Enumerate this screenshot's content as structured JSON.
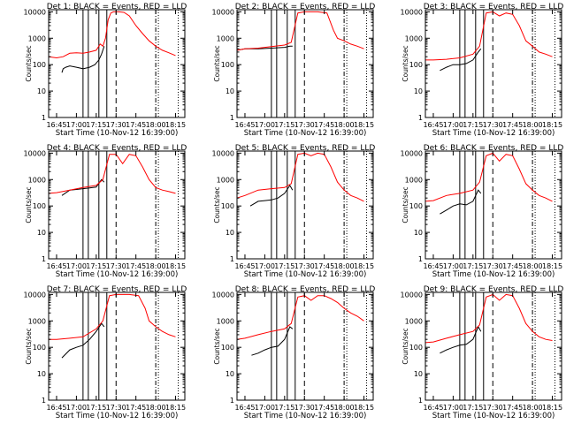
{
  "figure": {
    "x_axis_title": "Start Time (10-Nov-12 16:39:00)",
    "y_axis_title": "Counts/sec",
    "x_tick_labels": [
      "16:45",
      "17:00",
      "17:15",
      "17:30",
      "17:45",
      "18:00",
      "18:15"
    ],
    "y_tick_labels": [
      "1",
      "10",
      "100",
      "1000",
      "10000"
    ],
    "colors": {
      "events": "#000000",
      "lld": "#ff0000",
      "axes": "#000000"
    }
  },
  "chart_data": [
    {
      "type": "line",
      "title": "Det 1: BLACK = Events, RED = LLD",
      "xlabel": "Start Time (10-Nov-12 16:39:00)",
      "ylabel": "Counts/sec",
      "yscale": "log",
      "ylim": [
        1,
        12000
      ],
      "series": [
        {
          "name": "Events",
          "color": "#000000",
          "x": [
            "16:49",
            "16:50",
            "16:52",
            "16:55",
            "17:00",
            "17:05",
            "17:10",
            "17:14",
            "17:17",
            "17:19",
            "17:21"
          ],
          "values": [
            50,
            70,
            80,
            90,
            80,
            70,
            80,
            100,
            150,
            250,
            500
          ]
        },
        {
          "name": "LLD",
          "color": "#ff0000",
          "x": [
            "16:39",
            "16:45",
            "16:50",
            "16:55",
            "17:00",
            "17:05",
            "17:10",
            "17:15",
            "17:18",
            "17:20",
            "17:22",
            "17:24",
            "17:26",
            "17:28",
            "17:32",
            "17:36",
            "17:40",
            "17:45",
            "17:50",
            "17:55",
            "18:00",
            "18:05",
            "18:10",
            "18:15"
          ],
          "values": [
            200,
            180,
            200,
            270,
            280,
            270,
            300,
            350,
            600,
            500,
            1000,
            5000,
            9000,
            10000,
            10000,
            9500,
            7000,
            3000,
            1500,
            800,
            500,
            350,
            280,
            220
          ]
        }
      ]
    },
    {
      "type": "line",
      "title": "Det 2: BLACK = Events, RED = LLD",
      "xlabel": "Start Time (10-Nov-12 16:39:00)",
      "ylabel": "Counts/sec",
      "yscale": "log",
      "ylim": [
        1,
        12000
      ],
      "series": [
        {
          "name": "Events",
          "color": "#000000",
          "x": [
            "16:39",
            "16:45",
            "16:55",
            "17:05",
            "17:15",
            "17:19",
            "17:21"
          ],
          "values": [
            350,
            400,
            400,
            420,
            450,
            500,
            500
          ]
        },
        {
          "name": "LLD",
          "color": "#ff0000",
          "x": [
            "16:39",
            "16:45",
            "16:55",
            "17:05",
            "17:15",
            "17:20",
            "17:25",
            "17:30",
            "17:40",
            "17:47",
            "17:52",
            "17:55",
            "18:00",
            "18:05",
            "18:10",
            "18:15"
          ],
          "values": [
            350,
            400,
            420,
            480,
            550,
            700,
            9000,
            10000,
            10000,
            9000,
            2000,
            1000,
            800,
            600,
            500,
            400
          ]
        }
      ]
    },
    {
      "type": "line",
      "title": "Det 3: BLACK = Events, RED = LLD",
      "xlabel": "Start Time (10-Nov-12 16:39:00)",
      "ylabel": "Counts/sec",
      "yscale": "log",
      "ylim": [
        1,
        12000
      ],
      "series": [
        {
          "name": "Events",
          "color": "#000000",
          "x": [
            "16:50",
            "16:55",
            "17:00",
            "17:05",
            "17:10",
            "17:15",
            "17:19",
            "17:21"
          ],
          "values": [
            60,
            80,
            100,
            100,
            110,
            150,
            300,
            400
          ]
        },
        {
          "name": "LLD",
          "color": "#ff0000",
          "x": [
            "16:39",
            "16:45",
            "16:55",
            "17:05",
            "17:15",
            "17:20",
            "17:25",
            "17:30",
            "17:35",
            "17:40",
            "17:45",
            "17:50",
            "17:55",
            "18:00",
            "18:05",
            "18:10",
            "18:15"
          ],
          "values": [
            150,
            150,
            160,
            180,
            250,
            500,
            9000,
            10000,
            7000,
            9000,
            8000,
            3000,
            800,
            500,
            300,
            250,
            200
          ]
        }
      ]
    },
    {
      "type": "line",
      "title": "Det 4: BLACK = Events, RED = LLD",
      "xlabel": "Start Time (10-Nov-12 16:39:00)",
      "ylabel": "Counts/sec",
      "yscale": "log",
      "ylim": [
        1,
        12000
      ],
      "series": [
        {
          "name": "Events",
          "color": "#000000",
          "x": [
            "16:49",
            "16:55",
            "17:00",
            "17:05",
            "17:10",
            "17:15",
            "17:19",
            "17:21"
          ],
          "values": [
            250,
            400,
            420,
            450,
            480,
            520,
            1000,
            800
          ]
        },
        {
          "name": "LLD",
          "color": "#ff0000",
          "x": [
            "16:39",
            "16:45",
            "16:55",
            "17:05",
            "17:15",
            "17:20",
            "17:25",
            "17:30",
            "17:35",
            "17:40",
            "17:45",
            "17:50",
            "17:55",
            "18:00",
            "18:05",
            "18:10",
            "18:15"
          ],
          "values": [
            300,
            320,
            400,
            500,
            600,
            1000,
            9000,
            9000,
            4000,
            9000,
            8000,
            3000,
            1000,
            500,
            400,
            350,
            300
          ]
        }
      ]
    },
    {
      "type": "line",
      "title": "Det 5: BLACK = Events, RED = LLD",
      "xlabel": "Start Time (10-Nov-12 16:39:00)",
      "ylabel": "Counts/sec",
      "yscale": "log",
      "ylim": [
        1,
        12000
      ],
      "series": [
        {
          "name": "Events",
          "color": "#000000",
          "x": [
            "16:49",
            "16:55",
            "17:00",
            "17:05",
            "17:10",
            "17:15",
            "17:19",
            "17:21"
          ],
          "values": [
            100,
            150,
            160,
            170,
            200,
            300,
            600,
            400
          ]
        },
        {
          "name": "LLD",
          "color": "#ff0000",
          "x": [
            "16:39",
            "16:45",
            "16:55",
            "17:05",
            "17:15",
            "17:20",
            "17:25",
            "17:30",
            "17:35",
            "17:40",
            "17:45",
            "17:50",
            "17:55",
            "18:00",
            "18:05",
            "18:10",
            "18:15"
          ],
          "values": [
            200,
            250,
            400,
            450,
            500,
            700,
            9000,
            10000,
            8000,
            10000,
            9000,
            3000,
            800,
            400,
            250,
            200,
            150
          ]
        }
      ]
    },
    {
      "type": "line",
      "title": "Det 6: BLACK = Events, RED = LLD",
      "xlabel": "Start Time (10-Nov-12 16:39:00)",
      "ylabel": "Counts/sec",
      "yscale": "log",
      "ylim": [
        1,
        12000
      ],
      "series": [
        {
          "name": "Events",
          "color": "#000000",
          "x": [
            "16:50",
            "16:55",
            "17:00",
            "17:05",
            "17:10",
            "17:15",
            "17:19",
            "17:21"
          ],
          "values": [
            50,
            70,
            100,
            120,
            110,
            150,
            400,
            300
          ]
        },
        {
          "name": "LLD",
          "color": "#ff0000",
          "x": [
            "16:39",
            "16:45",
            "16:55",
            "17:05",
            "17:15",
            "17:20",
            "17:25",
            "17:30",
            "17:35",
            "17:40",
            "17:45",
            "17:50",
            "17:55",
            "18:00",
            "18:05",
            "18:10",
            "18:15"
          ],
          "values": [
            150,
            160,
            250,
            300,
            400,
            800,
            8000,
            10000,
            5000,
            9000,
            8000,
            2500,
            700,
            400,
            250,
            200,
            150
          ]
        }
      ]
    },
    {
      "type": "line",
      "title": "Det 7: BLACK = Events, RED = LLD",
      "xlabel": "Start Time (10-Nov-12 16:39:00)",
      "ylabel": "Counts/sec",
      "yscale": "log",
      "ylim": [
        1,
        12000
      ],
      "series": [
        {
          "name": "Events",
          "color": "#000000",
          "x": [
            "16:49",
            "16:55",
            "17:00",
            "17:05",
            "17:10",
            "17:15",
            "17:19",
            "17:21"
          ],
          "values": [
            40,
            80,
            100,
            120,
            200,
            400,
            800,
            600
          ]
        },
        {
          "name": "LLD",
          "color": "#ff0000",
          "x": [
            "16:39",
            "16:45",
            "16:55",
            "17:05",
            "17:15",
            "17:20",
            "17:25",
            "17:30",
            "17:40",
            "17:47",
            "17:52",
            "17:55",
            "18:00",
            "18:05",
            "18:10",
            "18:15"
          ],
          "values": [
            200,
            200,
            220,
            250,
            500,
            1000,
            9000,
            10000,
            10000,
            9000,
            3000,
            1000,
            600,
            400,
            300,
            250
          ]
        }
      ]
    },
    {
      "type": "line",
      "title": "Det 8: BLACK = Events, RED = LLD",
      "xlabel": "Start Time (10-Nov-12 16:39:00)",
      "ylabel": "Counts/sec",
      "yscale": "log",
      "ylim": [
        1,
        12000
      ],
      "series": [
        {
          "name": "Events",
          "color": "#000000",
          "x": [
            "16:50",
            "16:55",
            "17:00",
            "17:05",
            "17:10",
            "17:15",
            "17:19",
            "17:21"
          ],
          "values": [
            50,
            60,
            80,
            100,
            110,
            200,
            600,
            500
          ]
        },
        {
          "name": "LLD",
          "color": "#ff0000",
          "x": [
            "16:39",
            "16:45",
            "16:55",
            "17:05",
            "17:15",
            "17:20",
            "17:25",
            "17:30",
            "17:35",
            "17:40",
            "17:45",
            "17:50",
            "17:55",
            "18:00",
            "18:05",
            "18:10",
            "18:15"
          ],
          "values": [
            200,
            220,
            300,
            400,
            500,
            800,
            8000,
            9000,
            6000,
            9000,
            9000,
            7000,
            5000,
            3000,
            2000,
            1500,
            1000
          ]
        }
      ]
    },
    {
      "type": "line",
      "title": "Det 9: BLACK = Events, RED = LLD",
      "xlabel": "Start Time (10-Nov-12 16:39:00)",
      "ylabel": "Counts/sec",
      "yscale": "log",
      "ylim": [
        1,
        12000
      ],
      "series": [
        {
          "name": "Events",
          "color": "#000000",
          "x": [
            "16:50",
            "16:55",
            "17:00",
            "17:05",
            "17:10",
            "17:15",
            "17:19",
            "17:21"
          ],
          "values": [
            60,
            80,
            100,
            120,
            130,
            200,
            600,
            400
          ]
        },
        {
          "name": "LLD",
          "color": "#ff0000",
          "x": [
            "16:39",
            "16:45",
            "16:55",
            "17:05",
            "17:15",
            "17:20",
            "17:25",
            "17:30",
            "17:35",
            "17:40",
            "17:45",
            "17:50",
            "17:55",
            "18:00",
            "18:05",
            "18:10",
            "18:15"
          ],
          "values": [
            150,
            160,
            220,
            300,
            400,
            700,
            8000,
            10000,
            6000,
            10000,
            9000,
            3000,
            800,
            400,
            250,
            200,
            180
          ]
        }
      ]
    }
  ]
}
